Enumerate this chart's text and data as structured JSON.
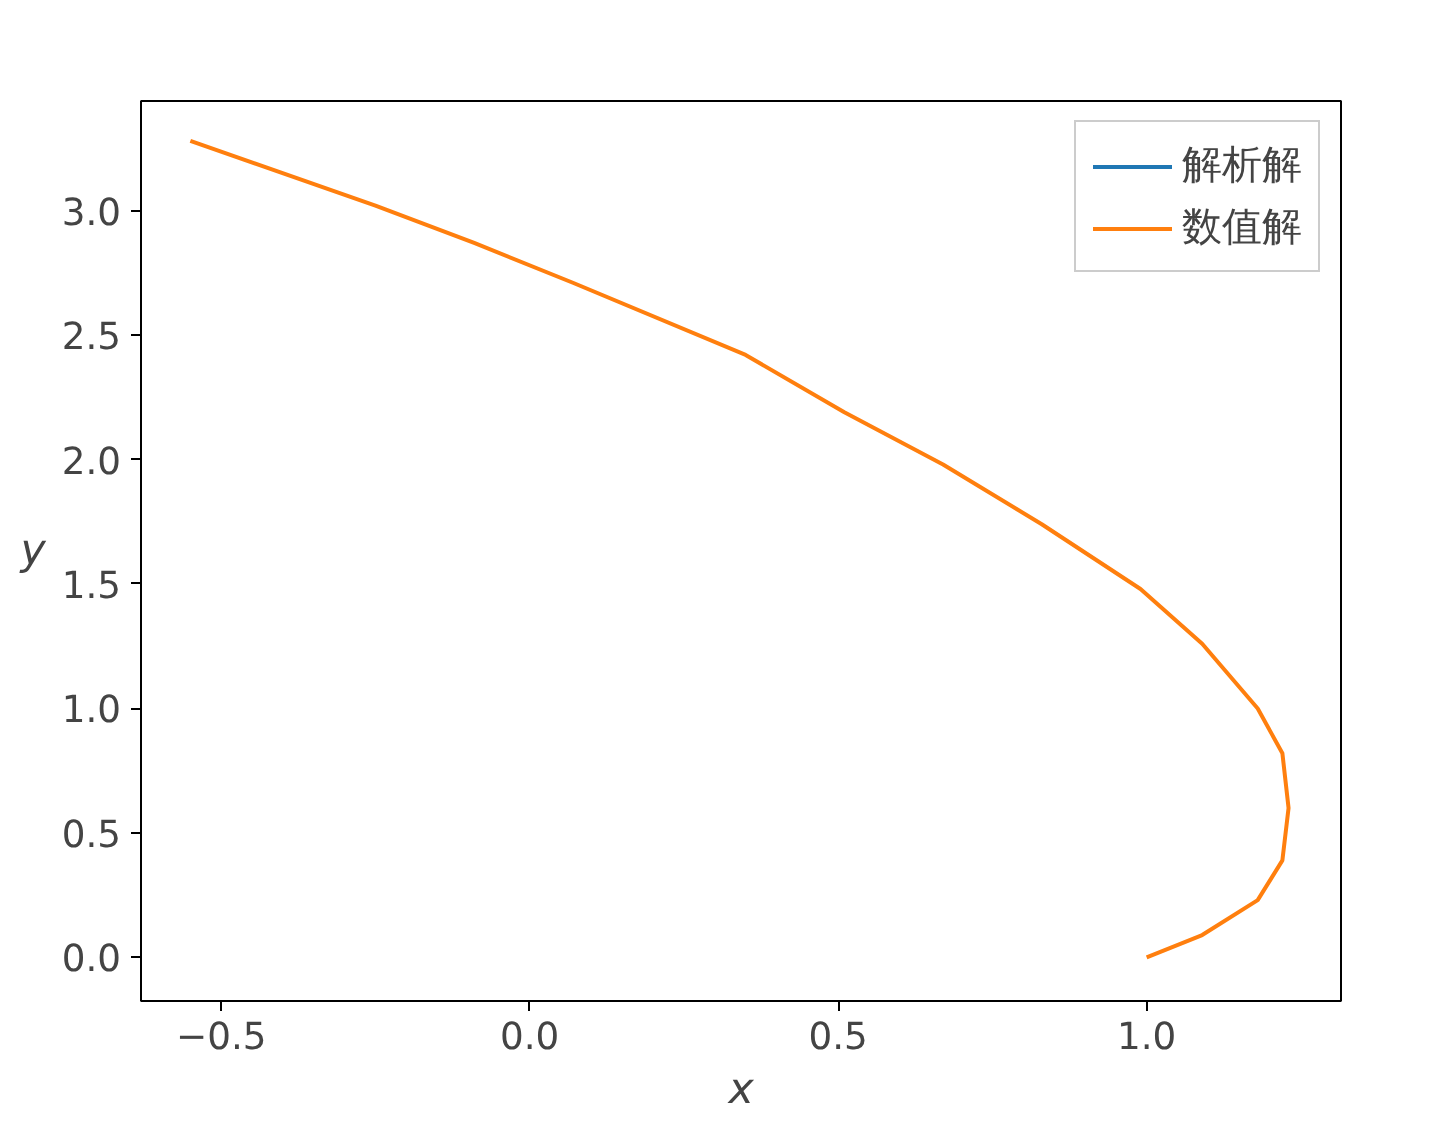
{
  "chart_data": {
    "type": "line",
    "xlabel": "x",
    "ylabel": "y",
    "xlim": [
      -0.63,
      1.315
    ],
    "ylim": [
      -0.175,
      3.44
    ],
    "xticks": [
      {
        "value": -0.5,
        "label": "−0.5"
      },
      {
        "value": 0.0,
        "label": "0.0"
      },
      {
        "value": 0.5,
        "label": "0.5"
      },
      {
        "value": 1.0,
        "label": "1.0"
      }
    ],
    "yticks": [
      {
        "value": 0.0,
        "label": "0.0"
      },
      {
        "value": 0.5,
        "label": "0.5"
      },
      {
        "value": 1.0,
        "label": "1.0"
      },
      {
        "value": 1.5,
        "label": "1.5"
      },
      {
        "value": 2.0,
        "label": "2.0"
      },
      {
        "value": 2.5,
        "label": "2.5"
      },
      {
        "value": 3.0,
        "label": "3.0"
      }
    ],
    "x": [
      1.0,
      1.09,
      1.18,
      1.22,
      1.23,
      1.22,
      1.18,
      1.09,
      0.99,
      0.83,
      0.67,
      0.51,
      0.35,
      0.07,
      -0.09,
      -0.25,
      -0.55
    ],
    "grid": false,
    "legend": "top right",
    "line_style": "solid",
    "series": [
      {
        "name": "解析解",
        "color": "#1f77b4",
        "values": [
          null,
          null,
          null,
          null,
          null,
          null,
          null,
          null,
          null,
          null,
          null,
          null,
          null,
          null,
          null,
          null,
          null
        ]
      },
      {
        "name": "数值解",
        "color": "#ff7f0e",
        "values": [
          0.0,
          0.09,
          0.23,
          0.39,
          0.6,
          0.82,
          1.0,
          1.26,
          1.48,
          1.74,
          1.98,
          2.19,
          2.42,
          2.71,
          2.87,
          3.02,
          3.28
        ]
      }
    ]
  }
}
